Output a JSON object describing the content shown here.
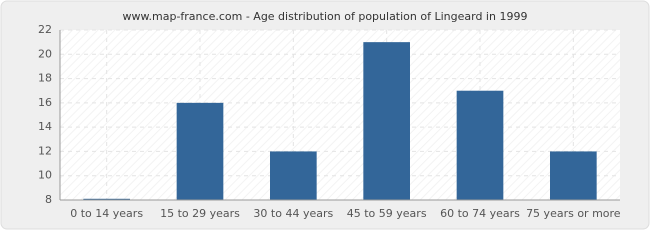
{
  "chart_data": {
    "type": "bar",
    "title": "www.map-france.com - Age distribution of population of Lingeard in 1999",
    "categories": [
      "0 to 14 years",
      "15 to 29 years",
      "30 to 44 years",
      "45 to 59 years",
      "60 to 74 years",
      "75 years or more"
    ],
    "values": [
      8.1,
      16,
      12,
      21,
      17,
      12
    ],
    "color": "#336699",
    "ylim": [
      8,
      22
    ],
    "yticks": [
      8,
      10,
      12,
      14,
      16,
      18,
      20,
      22
    ],
    "grid": true
  }
}
